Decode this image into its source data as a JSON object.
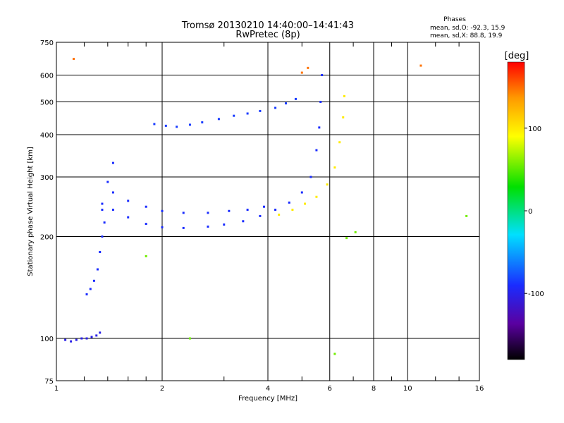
{
  "chart_data": {
    "type": "scatter",
    "title": "Tromsø 20130210 14:40:00–14:41:43",
    "subtitle": "RwPretec (8p)",
    "xlabel": "Frequency [MHz]",
    "ylabel": "Stationary phase Virtual Height [km]",
    "x_scale": "log",
    "y_scale": "log",
    "xlim": [
      1,
      16
    ],
    "ylim": [
      75,
      750
    ],
    "x_ticks": [
      1,
      2,
      4,
      6,
      8,
      10,
      16
    ],
    "y_ticks": [
      75,
      100,
      200,
      300,
      400,
      500,
      600,
      750
    ],
    "grid": true,
    "stats": {
      "heading": "Phases",
      "line_o": "mean, sd,O: -92.3, 15.9",
      "line_x": "mean, sd,X:  88.8, 19.9"
    },
    "colorbar": {
      "label": "[deg]",
      "range": [
        -180,
        180
      ],
      "ticks": [
        100,
        0,
        -100
      ],
      "colormap": "rainbow-black-purple-blue-cyan-green-yellow-red"
    },
    "segments": [
      {
        "name": "",
        "points": [
          [
            1.06,
            99
          ],
          [
            1.1,
            98
          ],
          [
            1.14,
            99
          ],
          [
            1.18,
            100
          ],
          [
            1.22,
            100
          ],
          [
            1.26,
            101
          ],
          [
            1.3,
            102
          ],
          [
            1.33,
            104
          ]
        ],
        "phase": -110
      },
      {
        "name": "",
        "points": [
          [
            1.22,
            135
          ],
          [
            1.25,
            140
          ],
          [
            1.28,
            148
          ],
          [
            1.31,
            160
          ],
          [
            1.33,
            180
          ],
          [
            1.35,
            200
          ],
          [
            1.37,
            220
          ]
        ],
        "phase": -100
      },
      {
        "name": "",
        "points": [
          [
            1.35,
            240
          ],
          [
            1.4,
            290
          ],
          [
            1.45,
            330
          ]
        ],
        "phase": -100
      },
      {
        "name": "",
        "points": [
          [
            1.35,
            250
          ],
          [
            1.45,
            240
          ],
          [
            1.6,
            228
          ],
          [
            1.8,
            218
          ],
          [
            2.0,
            213
          ],
          [
            2.3,
            212
          ],
          [
            2.7,
            214
          ],
          [
            3.0,
            217
          ],
          [
            3.4,
            222
          ],
          [
            3.8,
            230
          ],
          [
            4.2,
            240
          ],
          [
            4.6,
            252
          ],
          [
            5.0,
            270
          ],
          [
            5.3,
            300
          ],
          [
            5.5,
            360
          ],
          [
            5.6,
            420
          ],
          [
            5.65,
            500
          ],
          [
            5.7,
            600
          ]
        ],
        "phase": -100
      },
      {
        "name": "",
        "points": [
          [
            1.45,
            270
          ],
          [
            1.6,
            255
          ],
          [
            1.8,
            245
          ],
          [
            2.0,
            238
          ],
          [
            2.3,
            235
          ],
          [
            2.7,
            235
          ],
          [
            3.1,
            238
          ],
          [
            3.5,
            240
          ],
          [
            3.9,
            245
          ]
        ],
        "phase": -100
      },
      {
        "name": "",
        "points": [
          [
            1.9,
            430
          ],
          [
            2.05,
            425
          ],
          [
            2.2,
            422
          ],
          [
            2.4,
            428
          ],
          [
            2.6,
            435
          ],
          [
            2.9,
            445
          ],
          [
            3.2,
            455
          ],
          [
            3.5,
            462
          ],
          [
            3.8,
            470
          ],
          [
            4.2,
            480
          ],
          [
            4.5,
            495
          ],
          [
            4.8,
            510
          ]
        ],
        "phase": -95
      },
      {
        "name": "",
        "points": [
          [
            4.3,
            232
          ],
          [
            4.7,
            240
          ],
          [
            5.1,
            250
          ],
          [
            5.5,
            262
          ],
          [
            5.9,
            285
          ],
          [
            6.2,
            320
          ],
          [
            6.4,
            380
          ],
          [
            6.55,
            450
          ],
          [
            6.6,
            520
          ]
        ],
        "phase": 100
      },
      {
        "name": "",
        "points": [
          [
            5.0,
            610
          ],
          [
            5.2,
            630
          ],
          [
            10.9,
            640
          ],
          [
            1.12,
            670
          ]
        ],
        "phase": 150
      },
      {
        "name": "",
        "points": [
          [
            6.2,
            90
          ],
          [
            6.7,
            198
          ],
          [
            7.1,
            206
          ],
          [
            1.8,
            175
          ],
          [
            2.4,
            100
          ],
          [
            14.7,
            230
          ]
        ],
        "phase": 40
      }
    ]
  }
}
